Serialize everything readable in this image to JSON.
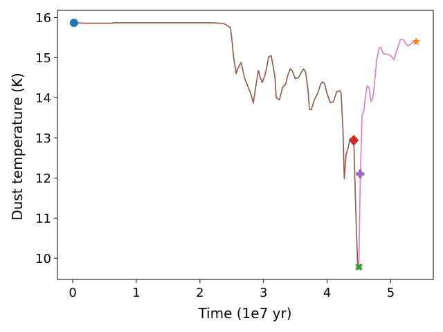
{
  "chart_data": {
    "type": "line",
    "title": "",
    "xlabel": "Time (1e7 yr)",
    "ylabel": "Dust temperature (K)",
    "xlim": [
      -0.24,
      5.67
    ],
    "ylim": [
      9.47,
      16.18
    ],
    "xticks": [
      "0",
      "1",
      "2",
      "3",
      "4",
      "5"
    ],
    "yticks": [
      "10",
      "11",
      "12",
      "13",
      "14",
      "15",
      "16"
    ],
    "grid": false,
    "legend": "none",
    "series": [
      {
        "color": "#8c564b",
        "x": [
          0.02,
          0.2,
          0.4,
          0.63,
          0.64,
          0.8,
          1.0,
          1.5,
          2.0,
          2.2,
          2.3,
          2.35,
          2.4,
          2.45,
          2.48,
          2.5,
          2.53,
          2.57,
          2.6,
          2.65,
          2.7,
          2.75,
          2.8,
          2.84,
          2.88,
          2.92,
          2.95,
          2.98,
          3.02,
          3.05,
          3.08,
          3.12,
          3.15,
          3.18,
          3.2,
          3.25,
          3.3,
          3.35,
          3.38,
          3.42,
          3.45,
          3.5,
          3.55,
          3.6,
          3.63,
          3.66,
          3.7,
          3.72,
          3.75,
          3.8,
          3.85,
          3.9,
          3.93,
          3.96,
          4.0,
          4.05,
          4.1,
          4.15,
          4.2,
          4.22,
          4.25,
          4.27,
          4.3,
          4.33,
          4.36,
          4.4,
          4.42,
          4.45,
          4.48,
          4.5
        ],
        "y": [
          15.87,
          15.86,
          15.86,
          15.86,
          15.87,
          15.87,
          15.87,
          15.87,
          15.87,
          15.87,
          15.86,
          15.86,
          15.83,
          15.78,
          15.75,
          15.5,
          15.0,
          14.6,
          14.75,
          14.88,
          14.5,
          14.3,
          14.1,
          13.87,
          14.3,
          14.68,
          14.5,
          14.38,
          14.55,
          14.75,
          15.02,
          15.05,
          14.8,
          14.52,
          14.0,
          13.95,
          14.25,
          14.35,
          14.55,
          14.72,
          14.68,
          14.48,
          14.5,
          14.65,
          14.72,
          14.65,
          14.2,
          13.72,
          13.7,
          13.95,
          14.1,
          14.35,
          14.4,
          14.35,
          14.1,
          13.88,
          13.9,
          14.15,
          14.18,
          14.1,
          13.2,
          11.98,
          12.6,
          12.75,
          12.98,
          12.98,
          12.92,
          11.2,
          9.85,
          9.78
        ]
      },
      {
        "color": "#e377c2",
        "x": [
          4.5,
          4.52,
          4.55,
          4.58,
          4.6,
          4.63,
          4.66,
          4.69,
          4.72,
          4.76,
          4.78,
          4.82,
          4.85,
          4.88,
          4.9,
          4.95,
          5.0,
          5.05,
          5.1,
          5.15,
          5.2,
          5.25,
          5.28,
          5.32,
          5.36,
          5.4
        ],
        "y": [
          9.8,
          11.9,
          13.55,
          13.7,
          14.0,
          14.3,
          14.25,
          13.9,
          14.0,
          14.6,
          14.95,
          15.25,
          15.25,
          15.1,
          15.1,
          15.08,
          15.05,
          14.95,
          15.2,
          15.45,
          15.45,
          15.32,
          15.3,
          15.35,
          15.4,
          15.4
        ]
      }
    ],
    "markers": [
      {
        "shape": "circle",
        "color": "#1f77b4",
        "x": 0.02,
        "y": 15.87
      },
      {
        "shape": "star",
        "color": "#ff7f0e",
        "x": 5.4,
        "y": 15.4
      },
      {
        "shape": "x",
        "color": "#2ca02c",
        "x": 4.5,
        "y": 9.78
      },
      {
        "shape": "diamond",
        "color": "#d62728",
        "x": 4.42,
        "y": 12.94
      },
      {
        "shape": "plus",
        "color": "#9467bd",
        "x": 4.52,
        "y": 12.1
      }
    ]
  }
}
